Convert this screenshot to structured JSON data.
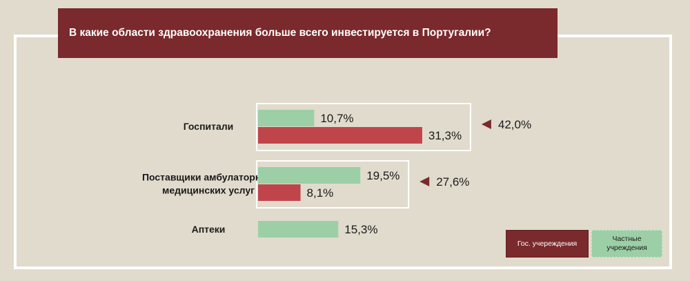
{
  "title": "В какие области здравоохранения больше всего инвестируется в Португалии?",
  "colors": {
    "public": "#c0454a",
    "private": "#9ccfa6",
    "dark": "#7a2a2c",
    "bg": "#e0dbcd"
  },
  "legend": {
    "public": "Гос. учереждения",
    "private": "Частные учреждения"
  },
  "chart_data": {
    "type": "bar",
    "orientation": "horizontal",
    "categories": [
      "Госпитали",
      "Поставщики амбулаторных медицинских услуг",
      "Аптеки"
    ],
    "category_lines": [
      [
        "Госпитали"
      ],
      [
        "Поставщики амбулаторных",
        "медицинских услуг"
      ],
      [
        "Аптеки"
      ]
    ],
    "series": [
      {
        "name": "Частные учреждения",
        "key": "private",
        "values": [
          10.7,
          19.5,
          15.3
        ],
        "labels": [
          "10,7%",
          "19,5%",
          "15,3%"
        ]
      },
      {
        "name": "Гос. учереждения",
        "key": "public",
        "values": [
          31.3,
          8.1,
          null
        ],
        "labels": [
          "31,3%",
          "8,1%",
          ""
        ]
      }
    ],
    "totals": [
      42.0,
      27.6,
      null
    ],
    "total_labels": [
      "42,0%",
      "27,6%",
      ""
    ]
  }
}
